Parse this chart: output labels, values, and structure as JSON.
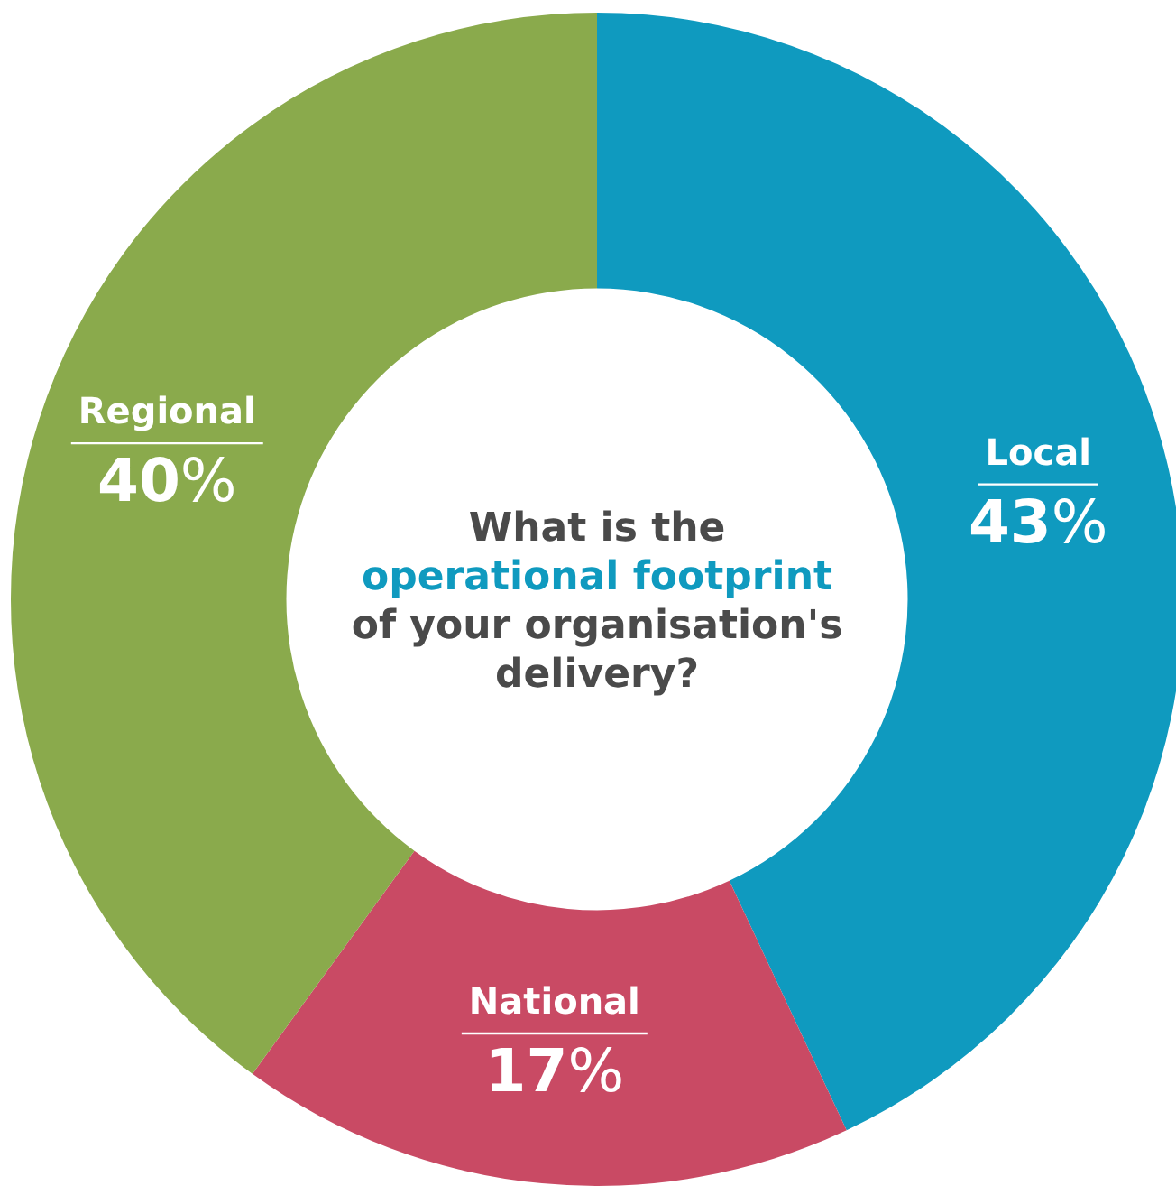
{
  "chart_data": {
    "type": "donut",
    "title": "What is the\noperational footprint\nof your organisation's\ndelivery?",
    "categories": [
      "Local",
      "National",
      "Regional"
    ],
    "values": [
      43,
      17,
      40
    ],
    "value_labels": [
      "43%",
      "17%",
      "40%"
    ],
    "colors": [
      "#0f9abf",
      "#c94a64",
      "#8aaa4c"
    ]
  }
}
